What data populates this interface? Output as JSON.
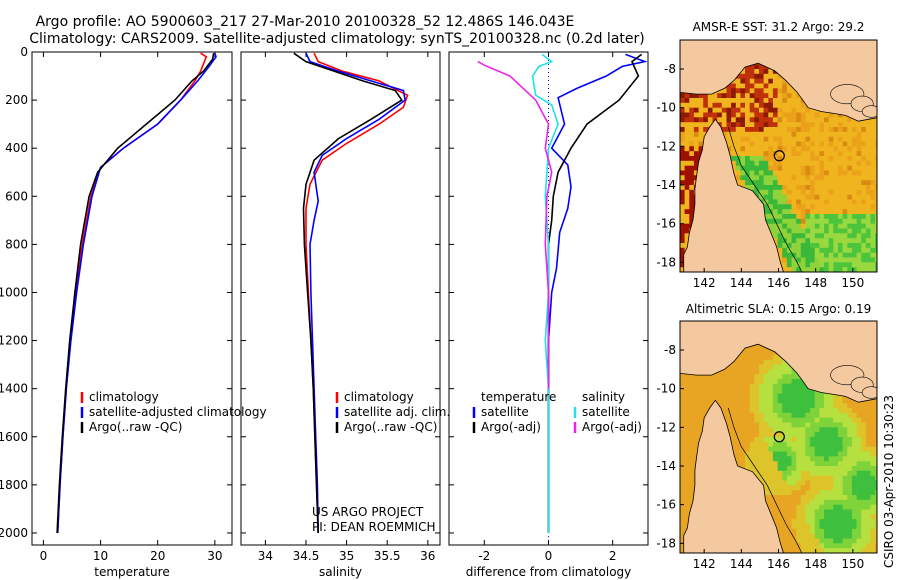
{
  "header": {
    "line1": "Argo profile: AO 5900603_217 27-Mar-2010 20100328_52 12.486S 146.043E",
    "line2": "Climatology: CARS2009. Satellite-adjusted climatology: synTS_20100328.nc (0.2d later)"
  },
  "credit": {
    "line1": "US ARGO PROJECT",
    "line2": "PI: DEAN ROEMMICH"
  },
  "stamp": "CSIRO 03-Apr-2010 10:30:23",
  "colors": {
    "red": "#ff0000",
    "blue": "#0000ff",
    "black": "#000000",
    "cyan": "#22e0ee",
    "magenta": "#ee22ee",
    "land": "#f5c9a0"
  },
  "chart_data": [
    {
      "type": "line",
      "xlabel": "temperature",
      "xlim": [
        -2,
        33
      ],
      "xticks": [
        0,
        10,
        20,
        30
      ],
      "ylim": [
        2050,
        0
      ],
      "yticks": [
        0,
        200,
        400,
        600,
        800,
        1000,
        1200,
        1400,
        1600,
        1800,
        2000
      ],
      "legend": [
        "climatology",
        "satellite-adjusted climatology",
        "Argo(..raw -QC)"
      ],
      "series": [
        {
          "name": "climatology",
          "color": "red",
          "points": [
            [
              27.5,
              5
            ],
            [
              28.5,
              20
            ],
            [
              27.5,
              80
            ],
            [
              26.5,
              120
            ],
            [
              24,
              200
            ],
            [
              20,
              300
            ],
            [
              14,
              400
            ],
            [
              10,
              480
            ],
            [
              8.3,
              600
            ],
            [
              6.8,
              800
            ],
            [
              5.6,
              1000
            ],
            [
              4.7,
              1200
            ],
            [
              4,
              1400
            ],
            [
              3.4,
              1600
            ],
            [
              2.9,
              1800
            ],
            [
              2.5,
              2000
            ]
          ]
        },
        {
          "name": "satellite-adjusted climatology",
          "color": "blue",
          "points": [
            [
              30,
              5
            ],
            [
              30.2,
              20
            ],
            [
              29,
              60
            ],
            [
              27,
              120
            ],
            [
              24,
              200
            ],
            [
              20,
              300
            ],
            [
              14,
              400
            ],
            [
              10,
              480
            ],
            [
              8.5,
              600
            ],
            [
              7,
              800
            ],
            [
              5.8,
              1000
            ],
            [
              4.8,
              1200
            ],
            [
              4,
              1400
            ],
            [
              3.4,
              1600
            ],
            [
              2.9,
              1800
            ],
            [
              2.5,
              2000
            ]
          ]
        },
        {
          "name": "Argo(..raw -QC)",
          "color": "black",
          "points": [
            [
              29.8,
              5
            ],
            [
              29.6,
              30
            ],
            [
              28,
              80
            ],
            [
              26,
              120
            ],
            [
              23,
              200
            ],
            [
              18,
              300
            ],
            [
              13,
              400
            ],
            [
              9.5,
              500
            ],
            [
              8,
              600
            ],
            [
              6.5,
              800
            ],
            [
              5.5,
              1000
            ],
            [
              4.6,
              1200
            ],
            [
              3.9,
              1400
            ],
            [
              3.3,
              1600
            ],
            [
              2.8,
              1800
            ],
            [
              2.4,
              2000
            ]
          ]
        }
      ]
    },
    {
      "type": "line",
      "xlabel": "salinity",
      "xlim": [
        33.7,
        36.15
      ],
      "xticks": [
        34,
        34.5,
        35,
        35.5,
        36
      ],
      "ylim": [
        2050,
        0
      ],
      "yticks": [
        0,
        200,
        400,
        600,
        800,
        1000,
        1200,
        1400,
        1600,
        1800,
        2000
      ],
      "legend": [
        "climatology",
        "satellite adj. clim.",
        "Argo(..raw -QC)"
      ],
      "series": [
        {
          "name": "climatology",
          "color": "red",
          "points": [
            [
              34.6,
              5
            ],
            [
              34.65,
              40
            ],
            [
              34.95,
              80
            ],
            [
              35.4,
              120
            ],
            [
              35.75,
              180
            ],
            [
              35.7,
              230
            ],
            [
              35.4,
              300
            ],
            [
              35.0,
              380
            ],
            [
              34.7,
              450
            ],
            [
              34.55,
              550
            ],
            [
              34.5,
              650
            ],
            [
              34.5,
              800
            ],
            [
              34.53,
              1000
            ],
            [
              34.56,
              1200
            ],
            [
              34.59,
              1400
            ],
            [
              34.61,
              1600
            ],
            [
              34.63,
              1800
            ],
            [
              34.65,
              2000
            ]
          ]
        },
        {
          "name": "satellite adj. clim.",
          "color": "blue",
          "points": [
            [
              34.5,
              5
            ],
            [
              34.55,
              40
            ],
            [
              34.9,
              80
            ],
            [
              35.3,
              120
            ],
            [
              35.7,
              160
            ],
            [
              35.72,
              200
            ],
            [
              35.4,
              280
            ],
            [
              35.0,
              360
            ],
            [
              34.7,
              430
            ],
            [
              34.6,
              500
            ],
            [
              34.65,
              620
            ],
            [
              34.6,
              700
            ],
            [
              34.55,
              800
            ],
            [
              34.56,
              1000
            ],
            [
              34.58,
              1200
            ],
            [
              34.6,
              1400
            ],
            [
              34.62,
              1600
            ],
            [
              34.64,
              1800
            ],
            [
              34.65,
              2000
            ]
          ]
        },
        {
          "name": "Argo(..raw -QC)",
          "color": "black",
          "points": [
            [
              34.35,
              5
            ],
            [
              34.5,
              40
            ],
            [
              34.85,
              80
            ],
            [
              35.2,
              120
            ],
            [
              35.6,
              160
            ],
            [
              35.68,
              200
            ],
            [
              35.3,
              280
            ],
            [
              34.9,
              360
            ],
            [
              34.6,
              450
            ],
            [
              34.5,
              550
            ],
            [
              34.47,
              650
            ],
            [
              34.48,
              800
            ],
            [
              34.52,
              1000
            ],
            [
              34.56,
              1200
            ],
            [
              34.59,
              1400
            ],
            [
              34.61,
              1600
            ],
            [
              34.63,
              1800
            ],
            [
              34.65,
              2000
            ]
          ]
        }
      ]
    },
    {
      "type": "line",
      "xlabel": "difference from climatology",
      "xlim": [
        -3.1,
        3.1
      ],
      "xticks": [
        -2,
        0,
        2
      ],
      "ylim": [
        2050,
        0
      ],
      "yticks": [
        0,
        200,
        400,
        600,
        800,
        1000,
        1200,
        1400,
        1600,
        1800,
        2000
      ],
      "legend_left_title": "temperature",
      "legend_right_title": "salinity",
      "legend_left": [
        "satellite",
        "Argo(-adj)"
      ],
      "legend_right": [
        "satellite",
        "Argo(-adj)"
      ],
      "series": [
        {
          "name": "temperature satellite",
          "color": "blue",
          "points": [
            [
              2.4,
              10
            ],
            [
              3,
              40
            ],
            [
              2.3,
              60
            ],
            [
              1.8,
              100
            ],
            [
              0.9,
              150
            ],
            [
              0.3,
              190
            ],
            [
              0.5,
              300
            ],
            [
              0.1,
              400
            ],
            [
              0.6,
              470
            ],
            [
              0.7,
              560
            ],
            [
              0.6,
              650
            ],
            [
              0.35,
              750
            ],
            [
              0.25,
              900
            ],
            [
              0.1,
              1000
            ],
            [
              0,
              1200
            ],
            [
              0,
              1600
            ],
            [
              0,
              2000
            ]
          ]
        },
        {
          "name": "temperature Argo(-adj)",
          "color": "black",
          "points": [
            [
              2.9,
              10
            ],
            [
              2.6,
              40
            ],
            [
              2.8,
              100
            ],
            [
              2.2,
              200
            ],
            [
              1.2,
              300
            ],
            [
              0.7,
              400
            ],
            [
              0.3,
              500
            ],
            [
              0.15,
              600
            ],
            [
              0.1,
              700
            ],
            [
              0,
              800
            ],
            [
              0,
              1000
            ],
            [
              0,
              1400
            ],
            [
              0,
              2000
            ]
          ]
        },
        {
          "name": "salinity satellite",
          "color": "cyan",
          "points": [
            [
              -0.2,
              10
            ],
            [
              0.1,
              40
            ],
            [
              -0.3,
              60
            ],
            [
              -0.5,
              100
            ],
            [
              -0.4,
              180
            ],
            [
              0.1,
              220
            ],
            [
              0.3,
              300
            ],
            [
              0,
              400
            ],
            [
              -0.1,
              600
            ],
            [
              0,
              800
            ],
            [
              0,
              1000
            ],
            [
              -0.1,
              1200
            ],
            [
              0,
              1400
            ],
            [
              0,
              1600
            ],
            [
              0,
              2000
            ]
          ]
        },
        {
          "name": "salinity Argo(-adj)",
          "color": "magenta",
          "points": [
            [
              -2.2,
              40
            ],
            [
              -2.0,
              55
            ],
            [
              -1.2,
              100
            ],
            [
              -0.4,
              200
            ],
            [
              0,
              300
            ],
            [
              -0.1,
              400
            ],
            [
              0.1,
              500
            ],
            [
              -0.05,
              600
            ],
            [
              -0.1,
              800
            ],
            [
              0,
              1000
            ],
            [
              0,
              1200
            ],
            [
              0,
              1400
            ]
          ]
        }
      ]
    },
    {
      "type": "heatmap",
      "title": "AMSR-E SST: 31.2 Argo: 29.2",
      "xlim": [
        140.7,
        151.3
      ],
      "xticks": [
        142,
        144,
        146,
        148,
        150
      ],
      "ylim": [
        -18.5,
        -6.5
      ],
      "yticks": [
        -8,
        -10,
        -12,
        -14,
        -16,
        -18
      ],
      "marker": [
        146.043,
        -12.486
      ]
    },
    {
      "type": "heatmap",
      "title": "Altimetric SLA: 0.15 Argo: 0.19",
      "xlim": [
        140.7,
        151.3
      ],
      "xticks": [
        142,
        144,
        146,
        148,
        150
      ],
      "ylim": [
        -18.5,
        -6.5
      ],
      "yticks": [
        -8,
        -10,
        -12,
        -14,
        -16,
        -18
      ],
      "marker": [
        146.043,
        -12.486
      ]
    }
  ]
}
